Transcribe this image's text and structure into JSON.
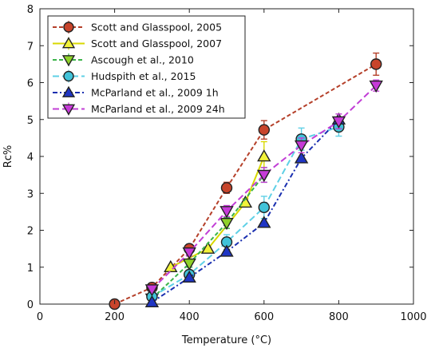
{
  "chart_data": {
    "type": "line",
    "xlabel": "Temperature (°C)",
    "ylabel": "Rc%",
    "xlim": [
      0,
      1000
    ],
    "ylim": [
      0,
      8
    ],
    "x_ticks": [
      "0",
      "200",
      "400",
      "600",
      "800",
      "1000"
    ],
    "y_ticks": [
      "0",
      "1",
      "2",
      "3",
      "4",
      "5",
      "6",
      "7",
      "8"
    ],
    "grid": false,
    "legend_position": "top-left",
    "series": [
      {
        "name": "Scott and Glasspool, 2005",
        "marker": "circle",
        "color": "#b5402a",
        "fill": "#c8442b",
        "line_dash": "5,3",
        "error_bars": true,
        "points": [
          {
            "x": 200,
            "y": 0.0,
            "err": 0
          },
          {
            "x": 300,
            "y": 0.45,
            "err": 0.05
          },
          {
            "x": 400,
            "y": 1.5,
            "err": 0.1
          },
          {
            "x": 500,
            "y": 3.15,
            "err": 0.15
          },
          {
            "x": 600,
            "y": 4.72,
            "err": 0.25
          },
          {
            "x": 900,
            "y": 6.5,
            "err": 0.3
          }
        ]
      },
      {
        "name": "Scott and Glasspool, 2007",
        "marker": "triangle-up",
        "color": "#d8d800",
        "fill": "#f2f23a",
        "line_dash": "",
        "error_bars": true,
        "points": [
          {
            "x": 350,
            "y": 1.0,
            "err": 0.05
          },
          {
            "x": 450,
            "y": 1.5,
            "err": 0.05
          },
          {
            "x": 550,
            "y": 2.75,
            "err": 0.1
          },
          {
            "x": 600,
            "y": 4.0,
            "err": 0.4
          }
        ]
      },
      {
        "name": "Ascough et al., 2010",
        "marker": "triangle-down",
        "color": "#3cb44a",
        "fill": "#8fd22a",
        "line_dash": "5,3",
        "error_bars": true,
        "points": [
          {
            "x": 300,
            "y": 0.15,
            "err": 0.05
          },
          {
            "x": 400,
            "y": 1.1,
            "err": 0.1
          },
          {
            "x": 500,
            "y": 2.2,
            "err": 0.15
          },
          {
            "x": 600,
            "y": 3.5,
            "err": 0.2
          }
        ]
      },
      {
        "name": "Hudspith et al., 2015",
        "marker": "circle",
        "color": "#5fd0e6",
        "fill": "#41c3d9",
        "line_dash": "8,4",
        "error_bars": true,
        "points": [
          {
            "x": 300,
            "y": 0.2,
            "err": 0.05
          },
          {
            "x": 400,
            "y": 0.8,
            "err": 0.1
          },
          {
            "x": 500,
            "y": 1.68,
            "err": 0.2
          },
          {
            "x": 600,
            "y": 2.62,
            "err": 0.3
          },
          {
            "x": 700,
            "y": 4.47,
            "err": 0.3
          },
          {
            "x": 800,
            "y": 4.8,
            "err": 0.25
          }
        ]
      },
      {
        "name": "McParland et al., 2009 1h",
        "marker": "triangle-up",
        "color": "#1a2fb0",
        "fill": "#1f35c4",
        "line_dash": "6,3,2,3",
        "error_bars": false,
        "points": [
          {
            "x": 300,
            "y": 0.05,
            "err": 0
          },
          {
            "x": 400,
            "y": 0.72,
            "err": 0
          },
          {
            "x": 500,
            "y": 1.42,
            "err": 0
          },
          {
            "x": 600,
            "y": 2.2,
            "err": 0
          },
          {
            "x": 700,
            "y": 3.95,
            "err": 0
          },
          {
            "x": 800,
            "y": 5.0,
            "err": 0
          }
        ]
      },
      {
        "name": "McParland et al., 2009 24h",
        "marker": "triangle-down",
        "color": "#c23fd6",
        "fill": "#c63ad8",
        "line_dash": "8,4",
        "error_bars": true,
        "points": [
          {
            "x": 300,
            "y": 0.4,
            "err": 0.05
          },
          {
            "x": 400,
            "y": 1.4,
            "err": 0.1
          },
          {
            "x": 500,
            "y": 2.52,
            "err": 0.15
          },
          {
            "x": 600,
            "y": 3.5,
            "err": 0.2
          },
          {
            "x": 700,
            "y": 4.3,
            "err": 0.2
          },
          {
            "x": 800,
            "y": 4.95,
            "err": 0.2
          },
          {
            "x": 900,
            "y": 5.92,
            "err": 0.15
          }
        ]
      }
    ]
  }
}
